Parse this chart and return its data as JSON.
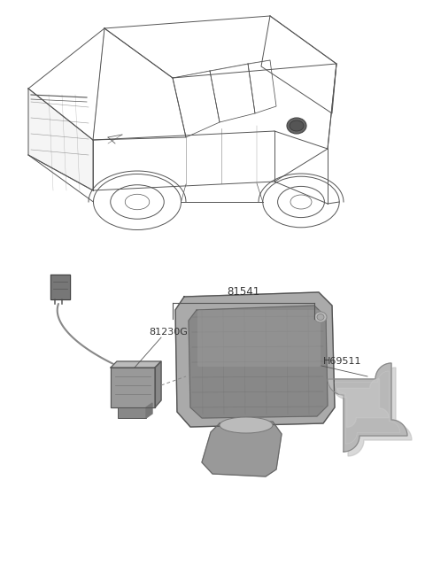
{
  "bg_color": "#ffffff",
  "fig_width": 4.8,
  "fig_height": 6.56,
  "dpi": 100,
  "line_color": "#555555",
  "text_color": "#333333",
  "car_line_color": "#555555",
  "part_gray_main": "#aaaaaa",
  "part_gray_dark": "#888888",
  "part_gray_light": "#cccccc",
  "part_gray_mid": "#999999",
  "label_81541": "81541",
  "label_81230G": "81230G",
  "label_H69511": "H69511",
  "font_size": 8.0
}
